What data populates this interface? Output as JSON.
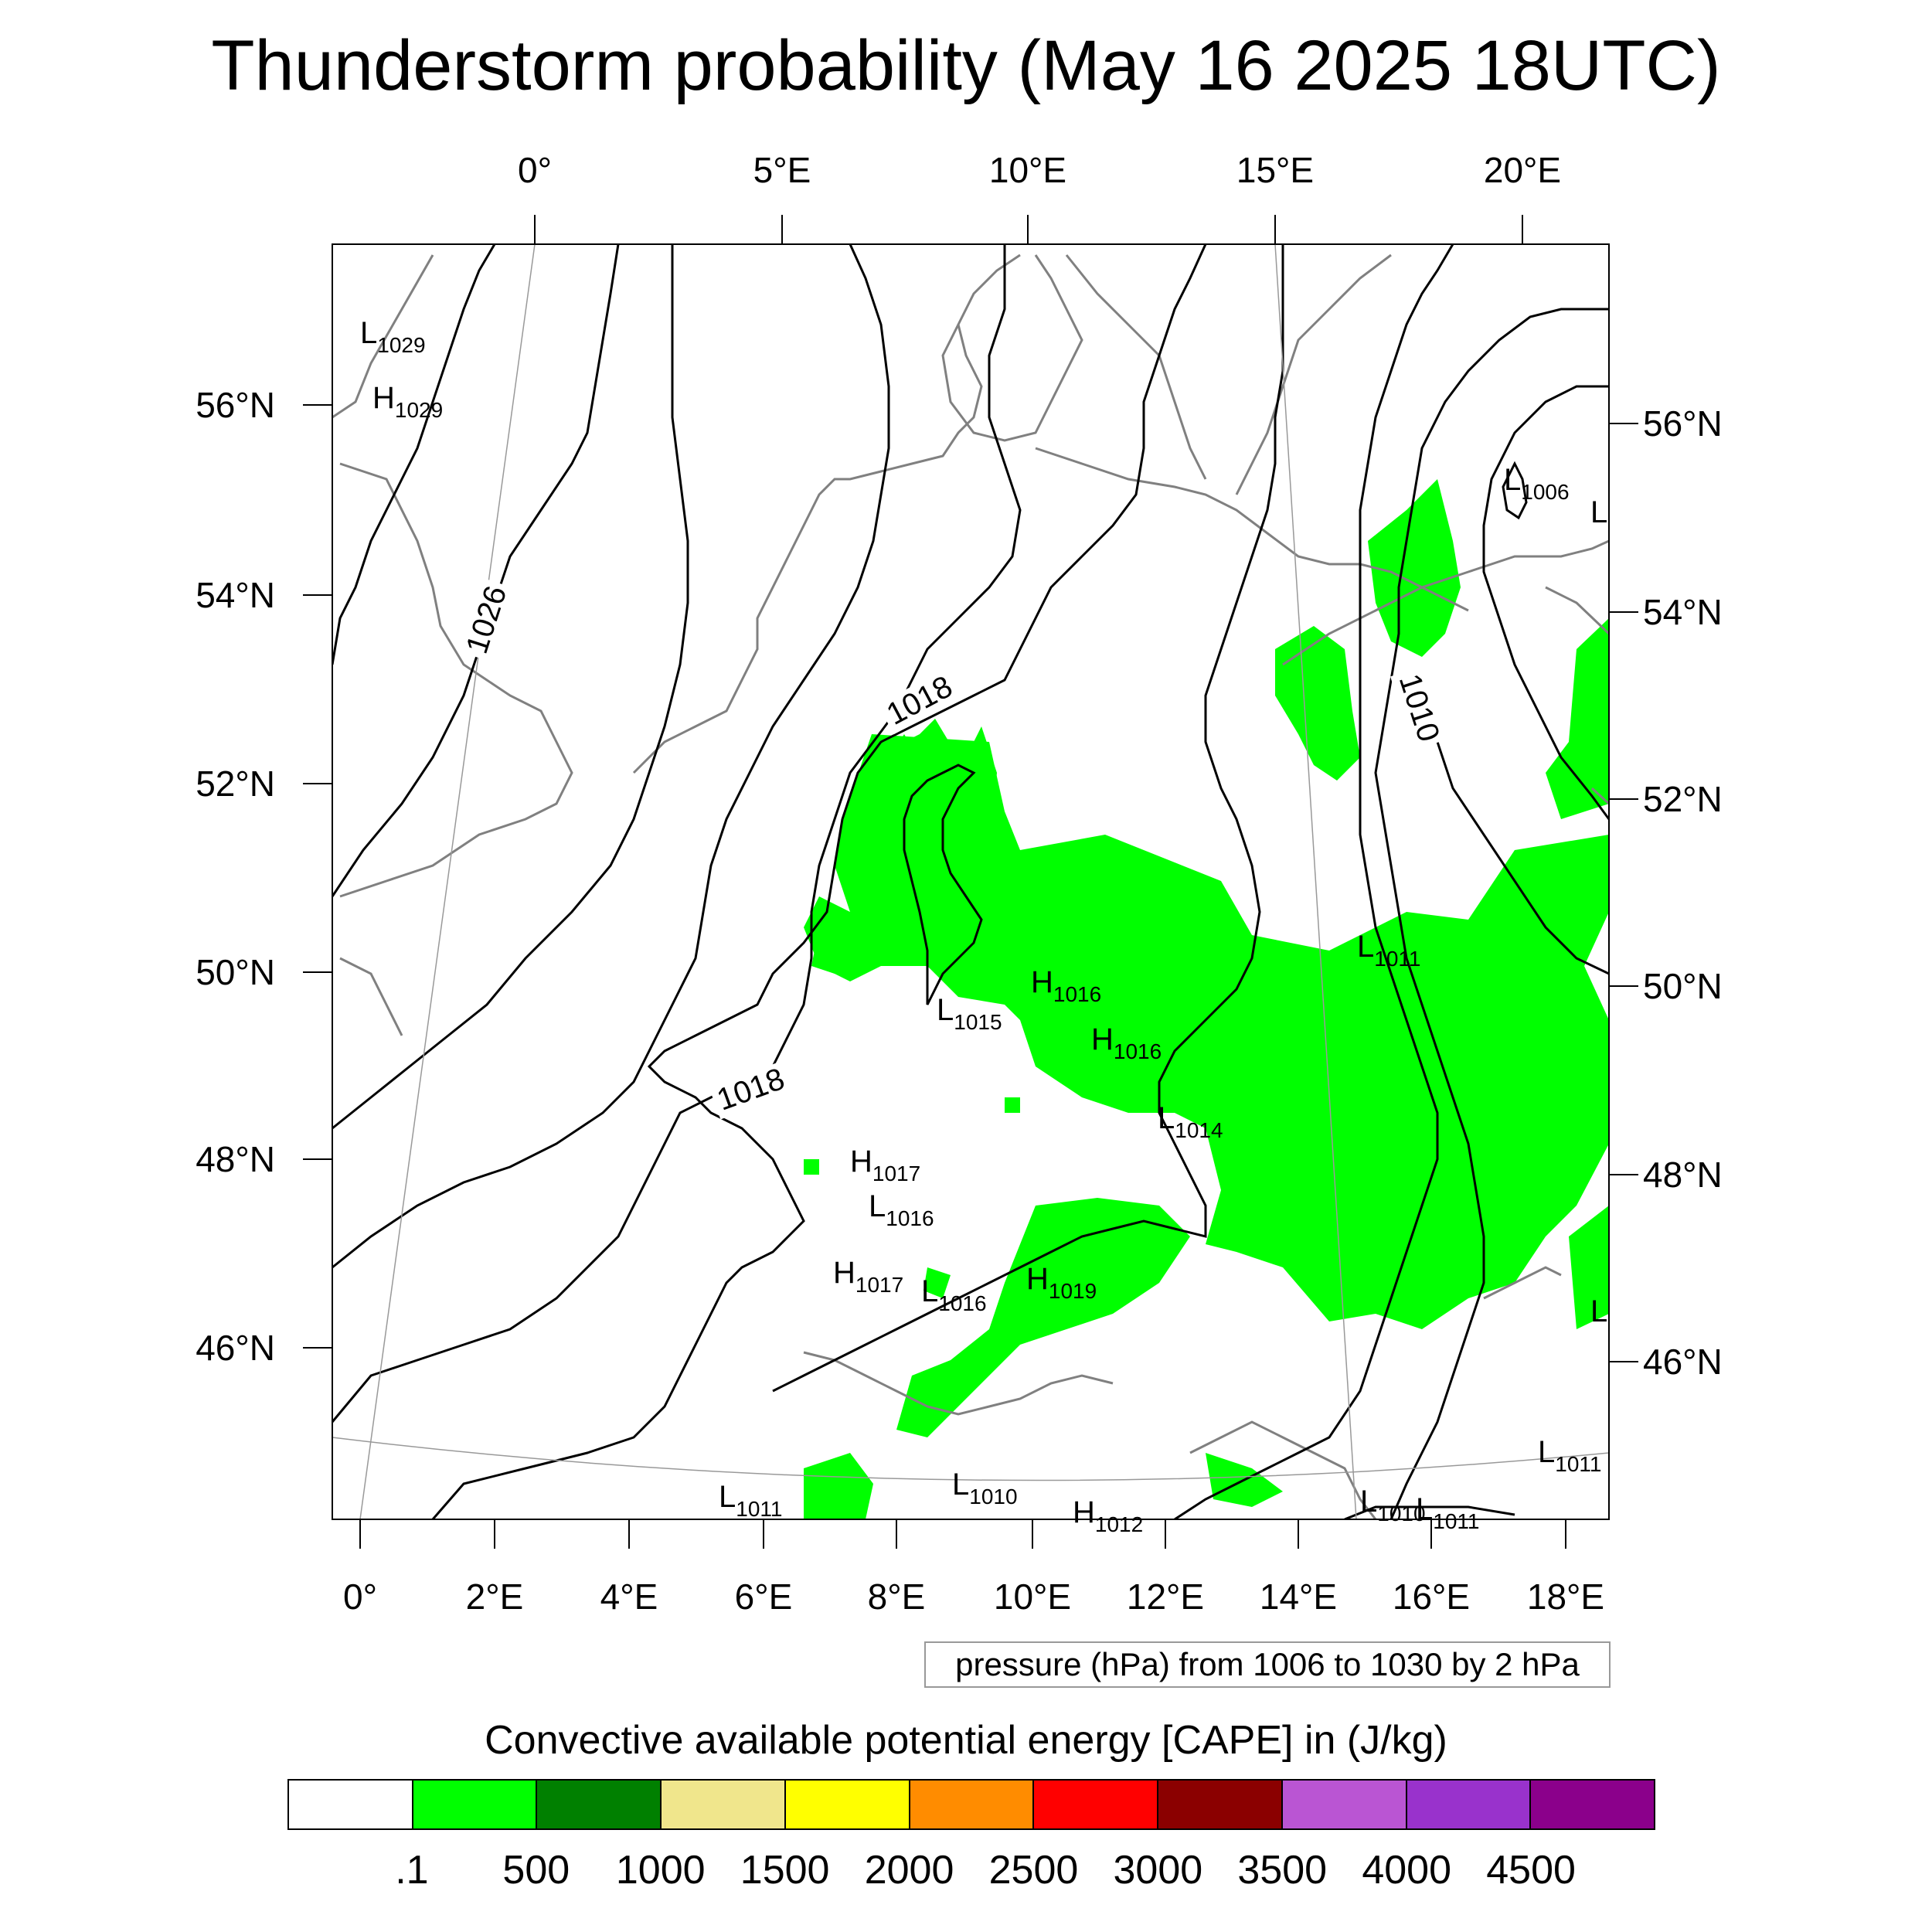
{
  "title": "Thunderstorm probability (May 16 2025 18UTC)",
  "map": {
    "top_lon_labels": [
      "0°",
      "5°E",
      "10°E",
      "15°E",
      "20°E"
    ],
    "bottom_lon_labels": [
      "0°",
      "2°E",
      "4°E",
      "6°E",
      "8°E",
      "10°E",
      "12°E",
      "14°E",
      "16°E",
      "18°E"
    ],
    "left_lat_labels": [
      "56°N",
      "54°N",
      "52°N",
      "50°N",
      "48°N",
      "46°N"
    ],
    "right_lat_labels": [
      "56°N",
      "54°N",
      "52°N",
      "50°N",
      "48°N",
      "46°N"
    ],
    "isobar_labels": [
      "1026",
      "1018",
      "1018",
      "1010"
    ],
    "pressure_centers": [
      {
        "letter": "L",
        "value": "1029"
      },
      {
        "letter": "H",
        "value": "1029"
      },
      {
        "letter": "L",
        "value": "1006"
      },
      {
        "letter": "L",
        "value": ""
      },
      {
        "letter": "L",
        "value": "1011"
      },
      {
        "letter": "H",
        "value": "1016"
      },
      {
        "letter": "L",
        "value": "1015"
      },
      {
        "letter": "H",
        "value": "1016"
      },
      {
        "letter": "L",
        "value": "1014"
      },
      {
        "letter": "H",
        "value": "1017"
      },
      {
        "letter": "L",
        "value": "1016"
      },
      {
        "letter": "H",
        "value": "1017"
      },
      {
        "letter": "L",
        "value": "1016"
      },
      {
        "letter": "H",
        "value": "1019"
      },
      {
        "letter": "L",
        "value": ""
      },
      {
        "letter": "L",
        "value": "1011"
      },
      {
        "letter": "L",
        "value": "1011"
      },
      {
        "letter": "L",
        "value": "1010"
      },
      {
        "letter": "H",
        "value": "1012"
      },
      {
        "letter": "L",
        "value": "1010"
      },
      {
        "letter": "L",
        "value": "1011"
      }
    ],
    "cape_fill_color": "#00ff00",
    "isobar_color": "#000000",
    "coastline_color": "#808080"
  },
  "pressure_legend": "pressure (hPa) from 1006 to 1030 by 2 hPa",
  "colorbar": {
    "title": "Convective available potential energy [CAPE] in (J/kg)",
    "colors": [
      "#ffffff",
      "#00ff00",
      "#008000",
      "#f0e68c",
      "#ffff00",
      "#ff8c00",
      "#ff0000",
      "#8b0000",
      "#ba55d3",
      "#9932cc",
      "#8b008b"
    ],
    "tick_labels": [
      ".1",
      "500",
      "1000",
      "1500",
      "2000",
      "2500",
      "3000",
      "3500",
      "4000",
      "4500"
    ]
  }
}
